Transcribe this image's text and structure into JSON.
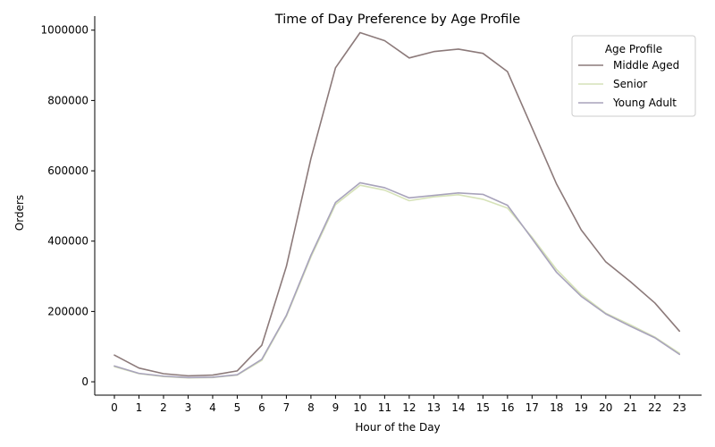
{
  "chart_data": {
    "type": "line",
    "title": "Time of Day Preference by Age Profile",
    "xlabel": "Hour of the Day",
    "ylabel": "Orders",
    "x": [
      0,
      1,
      2,
      3,
      4,
      5,
      6,
      7,
      8,
      9,
      10,
      11,
      12,
      13,
      14,
      15,
      16,
      17,
      18,
      19,
      20,
      21,
      22,
      23
    ],
    "xlim": [
      -0.8,
      23.9
    ],
    "ylim": [
      -38000,
      1040000
    ],
    "yticks": [
      0,
      200000,
      400000,
      600000,
      800000,
      1000000
    ],
    "grid": false,
    "legend": {
      "title": "Age Profile",
      "placement": "top-right"
    },
    "series": [
      {
        "name": "Middle Aged",
        "color": "#8c7a7a",
        "values": [
          76000,
          39000,
          23000,
          17000,
          19000,
          31000,
          104000,
          328000,
          635000,
          893000,
          993000,
          970000,
          921000,
          939000,
          946000,
          934000,
          882000,
          722000,
          562000,
          432000,
          341000,
          285000,
          224000,
          144000
        ]
      },
      {
        "name": "Senior",
        "color": "#d6e2b8",
        "values": [
          43000,
          23000,
          15000,
          11000,
          12000,
          19000,
          61000,
          186000,
          355000,
          504000,
          559000,
          545000,
          515000,
          526000,
          532000,
          519000,
          494000,
          411000,
          319000,
          248000,
          195000,
          162000,
          127000,
          81000
        ]
      },
      {
        "name": "Young Adult",
        "color": "#a8a3bb",
        "values": [
          45000,
          24000,
          16000,
          12000,
          13000,
          20000,
          64000,
          189000,
          360000,
          510000,
          566000,
          552000,
          523000,
          530000,
          537000,
          533000,
          502000,
          407000,
          311000,
          243000,
          193000,
          158000,
          125000,
          78000
        ]
      }
    ]
  }
}
